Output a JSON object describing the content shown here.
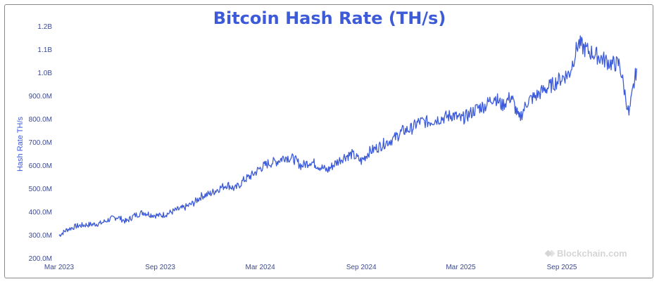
{
  "chart_data": {
    "type": "line",
    "title": "Bitcoin Hash Rate (TH/s)",
    "ylabel": "Hash Rate TH/s",
    "xlabel": "",
    "ylim": [
      200000000,
      1200000000
    ],
    "y_ticks": [
      "200.0M",
      "300.0M",
      "400.0M",
      "500.0M",
      "600.0M",
      "700.0M",
      "800.0M",
      "900.0M",
      "1.0B",
      "1.1B",
      "1.2B"
    ],
    "x_ticks": [
      "Mar 2023",
      "Sep 2023",
      "Mar 2024",
      "Sep 2024",
      "Mar 2025",
      "Sep 2025"
    ],
    "line_color": "#3d5bd9",
    "grid": false,
    "series": [
      {
        "x": [
          "2023-03-01",
          "2023-03-15",
          "2023-04-01",
          "2023-04-15",
          "2023-05-01",
          "2023-05-15",
          "2023-06-01",
          "2023-06-15",
          "2023-07-01",
          "2023-07-15",
          "2023-08-01",
          "2023-08-15",
          "2023-09-01",
          "2023-09-15",
          "2023-10-01",
          "2023-10-15",
          "2023-11-01",
          "2023-11-15",
          "2023-12-01",
          "2023-12-15",
          "2024-01-01",
          "2024-01-15",
          "2024-02-01",
          "2024-02-15",
          "2024-03-01",
          "2024-03-15",
          "2024-04-01",
          "2024-04-15",
          "2024-05-01",
          "2024-05-15",
          "2024-06-01",
          "2024-06-15",
          "2024-07-01",
          "2024-07-15",
          "2024-08-01",
          "2024-08-15",
          "2024-09-01",
          "2024-09-15",
          "2024-10-01",
          "2024-10-15",
          "2024-11-01",
          "2024-11-15",
          "2024-12-01",
          "2024-12-15",
          "2025-01-01",
          "2025-01-15",
          "2025-02-01",
          "2025-02-15",
          "2025-03-01",
          "2025-03-15",
          "2025-04-01",
          "2025-04-15",
          "2025-05-01",
          "2025-05-15",
          "2025-06-01",
          "2025-06-15",
          "2025-07-01",
          "2025-07-15",
          "2025-08-01",
          "2025-08-15",
          "2025-09-01",
          "2025-09-15",
          "2025-10-01",
          "2025-10-15",
          "2025-11-01",
          "2025-11-15",
          "2025-12-01",
          "2025-12-15",
          "2026-01-01",
          "2026-01-15"
        ],
        "values": [
          300000000,
          325000000,
          340000000,
          345000000,
          348000000,
          352000000,
          370000000,
          380000000,
          360000000,
          385000000,
          400000000,
          390000000,
          385000000,
          395000000,
          410000000,
          420000000,
          440000000,
          470000000,
          480000000,
          500000000,
          520000000,
          500000000,
          540000000,
          560000000,
          590000000,
          610000000,
          620000000,
          640000000,
          630000000,
          600000000,
          620000000,
          600000000,
          580000000,
          610000000,
          640000000,
          650000000,
          620000000,
          660000000,
          680000000,
          700000000,
          720000000,
          750000000,
          760000000,
          790000000,
          790000000,
          800000000,
          810000000,
          820000000,
          800000000,
          820000000,
          850000000,
          860000000,
          900000000,
          860000000,
          900000000,
          800000000,
          880000000,
          900000000,
          930000000,
          950000000,
          980000000,
          1000000000,
          1130000000,
          1100000000,
          1080000000,
          1060000000,
          1040000000,
          1040000000,
          820000000,
          1020000000
        ]
      }
    ]
  },
  "watermark": "Blockchain.com"
}
